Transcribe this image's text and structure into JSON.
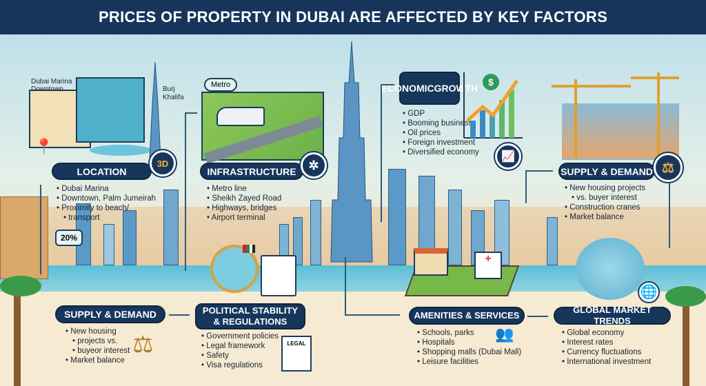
{
  "title": "PRICES OF PROPERTY IN DUBAI ARE AFFECTED BY KEY FACTORS",
  "map_labels": {
    "marina_downtown_1": "Dubai Marina",
    "marina_downtown_2": "Downtown",
    "burj_1": "Burj",
    "burj_2": "Khalifa",
    "metro": "Metro",
    "badge_3d": "3D",
    "percent": "20%",
    "legal_doc": "LEGAL",
    "dollar": "$"
  },
  "location": {
    "label": "LOCATION",
    "items": [
      "Dubai Marina",
      "Downtown, Palm Jumeirah",
      "Proximity to beach/",
      "transport"
    ]
  },
  "infrastructure": {
    "label": "INFRASTRUCTURE",
    "items": [
      "Metro line",
      "Sheikh Zayed Road",
      "Highways, bridges",
      "Airport terminal"
    ]
  },
  "economic": {
    "label_1": "ECONOMIC",
    "label_2": "GROWTH",
    "items": [
      "GDP",
      "Booming business",
      "Oil prices",
      "Foreign investment",
      "Diversified economy"
    ]
  },
  "supply_top": {
    "label": "SUPPLY & DEMAND",
    "items": [
      "New housing projects",
      "vs. buyer interest",
      "Construction cranes",
      "Market balance"
    ]
  },
  "supply_bottom": {
    "label": "SUPPLY & DEMAND",
    "items": [
      "New housing",
      "projects vs.",
      "buyeor interest",
      "Market balance"
    ]
  },
  "political": {
    "label_1": "POLITICAL STABILITY",
    "label_2": "& REGULATIONS",
    "items": [
      "Government policies",
      "Legal framework",
      "Safety",
      "Visa regulations"
    ]
  },
  "amenities": {
    "label": "AMENITIES & SERVICES",
    "items": [
      "Schools, parks",
      "Hospitals",
      "Shopping malls (Dubai Mall)",
      "Leisure facilities"
    ]
  },
  "global": {
    "label": "GLOBAL MARKET TRENDS",
    "items": [
      "Global economy",
      "Interest rates",
      "Currency fluctuations",
      "International investment"
    ]
  },
  "colors": {
    "navy": "#16365c",
    "sky": "#bfe0ea",
    "water": "#5bbfd6",
    "sand": "#f6ead2",
    "accent": "#f0a030"
  }
}
